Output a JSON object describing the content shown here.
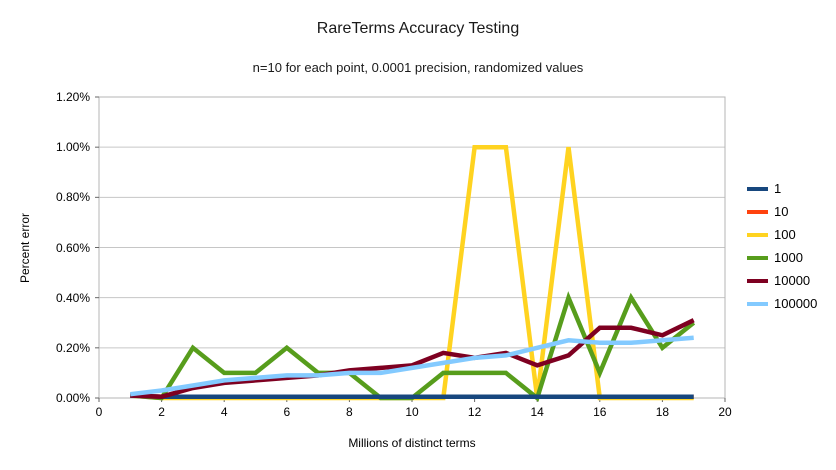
{
  "chart_data": {
    "type": "line",
    "title": "RareTerms Accuracy Testing",
    "subtitle": "n=10 for each point, 0.0001 precision, randomized values",
    "xlabel": "Millions of distinct terms",
    "ylabel": "Percent error",
    "xlim": [
      0,
      20
    ],
    "ylim": [
      0,
      1.2
    ],
    "grid": "horizontal",
    "legend_position": "right",
    "x_ticks": [
      {
        "value": 0,
        "label": "0"
      },
      {
        "value": 2,
        "label": "2"
      },
      {
        "value": 4,
        "label": "4"
      },
      {
        "value": 6,
        "label": "6"
      },
      {
        "value": 8,
        "label": "8"
      },
      {
        "value": 10,
        "label": "10"
      },
      {
        "value": 12,
        "label": "12"
      },
      {
        "value": 14,
        "label": "14"
      },
      {
        "value": 16,
        "label": "16"
      },
      {
        "value": 18,
        "label": "18"
      },
      {
        "value": 20,
        "label": "20"
      }
    ],
    "y_ticks": [
      {
        "value": 0.0,
        "label": "0.00%"
      },
      {
        "value": 0.2,
        "label": "0.20%"
      },
      {
        "value": 0.4,
        "label": "0.40%"
      },
      {
        "value": 0.6,
        "label": "0.60%"
      },
      {
        "value": 0.8,
        "label": "0.80%"
      },
      {
        "value": 1.0,
        "label": "1.00%"
      },
      {
        "value": 1.2,
        "label": "1.20%"
      }
    ],
    "x": [
      1,
      2,
      3,
      4,
      5,
      6,
      7,
      8,
      9,
      10,
      11,
      12,
      13,
      14,
      15,
      16,
      17,
      18,
      19
    ],
    "series": [
      {
        "name": "1",
        "color": "#17477e",
        "values": [
          0.01,
          0.005,
          0.005,
          0.005,
          0.005,
          0.005,
          0.005,
          0.005,
          0.005,
          0.005,
          0.005,
          0.005,
          0.005,
          0.005,
          0.005,
          0.005,
          0.005,
          0.005,
          0.005
        ]
      },
      {
        "name": "10",
        "color": "#ff420e",
        "values": [
          0.01,
          0.005,
          0.005,
          0.005,
          0.005,
          0.005,
          0.005,
          0.005,
          0.005,
          0.005,
          0.005,
          0.005,
          0.005,
          0.005,
          0.005,
          0.005,
          0.005,
          0.005,
          0.005
        ]
      },
      {
        "name": "100",
        "color": "#ffd320",
        "values": [
          0.01,
          0,
          0,
          0,
          0,
          0,
          0,
          0,
          0,
          0,
          0,
          1.0,
          1.0,
          0,
          1.0,
          0,
          0,
          0,
          0
        ]
      },
      {
        "name": "1000",
        "color": "#579d1c",
        "values": [
          0.01,
          0,
          0.2,
          0.1,
          0.1,
          0.2,
          0.1,
          0.1,
          0,
          0,
          0.1,
          0.1,
          0.1,
          0,
          0.4,
          0.1,
          0.4,
          0.2,
          0.3
        ]
      },
      {
        "name": "10000",
        "color": "#7e0021",
        "values": [
          0.01,
          0.005,
          0.04,
          0.06,
          0.07,
          0.08,
          0.09,
          0.11,
          0.12,
          0.13,
          0.18,
          0.16,
          0.18,
          0.13,
          0.17,
          0.28,
          0.28,
          0.25,
          0.31
        ]
      },
      {
        "name": "100000",
        "color": "#83caff",
        "values": [
          0.015,
          0.03,
          0.05,
          0.07,
          0.08,
          0.09,
          0.09,
          0.1,
          0.1,
          0.12,
          0.14,
          0.16,
          0.17,
          0.2,
          0.23,
          0.22,
          0.22,
          0.23,
          0.24
        ]
      }
    ]
  }
}
